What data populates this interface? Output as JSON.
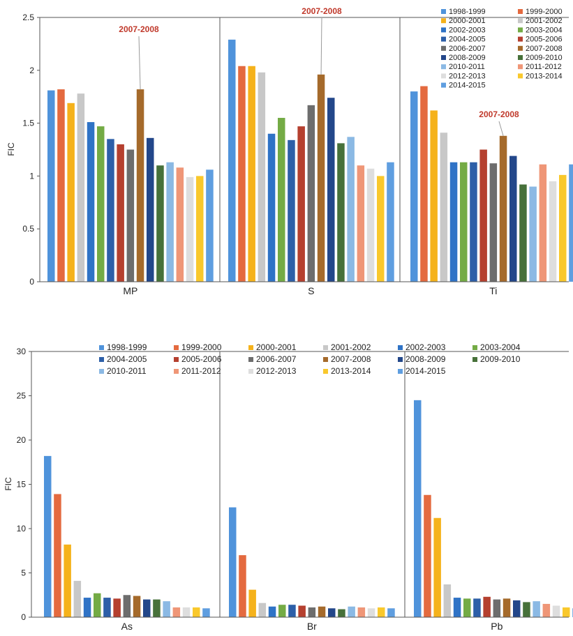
{
  "series_names": [
    "1998-1999",
    "1999-2000",
    "2000-2001",
    "2001-2002",
    "2002-2003",
    "2003-2004",
    "2004-2005",
    "2005-2006",
    "2006-2007",
    "2007-2008",
    "2008-2009",
    "2009-2010",
    "2010-2011",
    "2011-2012",
    "2012-2013",
    "2013-2014",
    "2014-2015"
  ],
  "series_colors": [
    "#4f93db",
    "#e46a3f",
    "#f5b21b",
    "#c8c8c8",
    "#2f73c6",
    "#74ab45",
    "#2d5fa8",
    "#b5402f",
    "#6d6d6d",
    "#a56a2b",
    "#23478a",
    "#47713a",
    "#8bb9e4",
    "#ef9677",
    "#dedede",
    "#f9c82c",
    "#5f9ee0"
  ],
  "annotation_color": "#c0392b",
  "chart_data": [
    {
      "type": "bar",
      "ylabel": "FIC",
      "ylim": [
        0,
        2.5
      ],
      "yticks": [
        "0",
        "0.5",
        "1",
        "1.5",
        "2",
        "2.5"
      ],
      "categories": [
        "MP",
        "S",
        "Ti"
      ],
      "legend": "top-right",
      "annotations": [
        {
          "category": "MP",
          "series": "2007-2008",
          "text": "2007-2008"
        },
        {
          "category": "S",
          "series": "2007-2008",
          "text": "2007-2008"
        },
        {
          "category": "Ti",
          "series": "2007-2008",
          "text": "2007-2008"
        }
      ],
      "values": {
        "MP": [
          1.81,
          1.82,
          1.69,
          1.78,
          1.51,
          1.47,
          1.35,
          1.3,
          1.25,
          1.82,
          1.36,
          1.1,
          1.13,
          1.08,
          0.99,
          1.0,
          1.06
        ],
        "S": [
          2.29,
          2.04,
          2.04,
          1.98,
          1.4,
          1.55,
          1.34,
          1.47,
          1.67,
          1.96,
          1.74,
          1.31,
          1.37,
          1.1,
          1.07,
          1.0,
          1.13
        ],
        "Ti": [
          1.8,
          1.85,
          1.62,
          1.41,
          1.13,
          1.13,
          1.13,
          1.25,
          1.12,
          1.38,
          1.19,
          0.92,
          0.9,
          1.11,
          0.95,
          1.01,
          1.11
        ]
      }
    },
    {
      "type": "bar",
      "ylabel": "FIC",
      "ylim": [
        0,
        30
      ],
      "yticks": [
        "0",
        "5",
        "10",
        "15",
        "20",
        "25",
        "30"
      ],
      "categories": [
        "As",
        "Br",
        "Pb"
      ],
      "legend": "top",
      "values": {
        "As": [
          18.2,
          13.9,
          8.2,
          4.1,
          2.2,
          2.7,
          2.2,
          2.1,
          2.5,
          2.4,
          2.0,
          2.0,
          1.8,
          1.1,
          1.1,
          1.1,
          1.0
        ],
        "Br": [
          12.4,
          7.0,
          3.1,
          1.6,
          1.2,
          1.4,
          1.4,
          1.3,
          1.1,
          1.2,
          1.0,
          0.9,
          1.2,
          1.1,
          1.0,
          1.1,
          1.0
        ],
        "Pb": [
          24.5,
          13.8,
          11.2,
          3.7,
          2.2,
          2.1,
          2.1,
          2.3,
          2.0,
          2.1,
          1.9,
          1.7,
          1.8,
          1.5,
          1.3,
          1.1,
          1.0
        ]
      }
    }
  ]
}
